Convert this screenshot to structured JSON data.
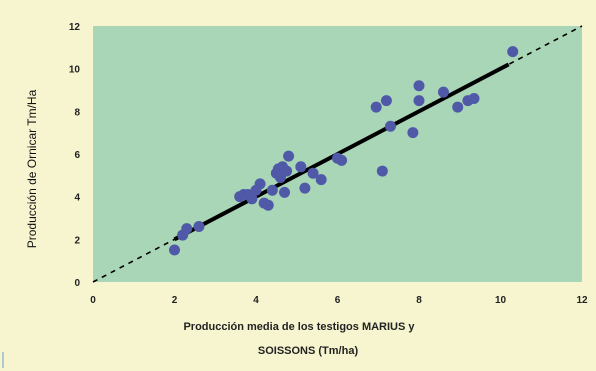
{
  "colors": {
    "background": "#f6f5cf",
    "plot_area": "#a9d6b6",
    "point": "#4f59a8",
    "fit_line": "#000000",
    "diagonal": "#000000",
    "edge_mark": "#6a9bd0"
  },
  "chart_data": {
    "type": "scatter",
    "title": "",
    "xlabel": [
      "Producción media de los testigos MARIUS y",
      "SOISSONS (Tm/ha)"
    ],
    "ylabel": "Producción de Ornicar Tm/Ha",
    "xlim": [
      0,
      12
    ],
    "ylim": [
      0,
      12
    ],
    "xticks": [
      "0",
      "2",
      "4",
      "6",
      "8",
      "10",
      "12"
    ],
    "yticks": [
      "0",
      "2",
      "4",
      "6",
      "8",
      "10",
      "12"
    ],
    "grid": false,
    "legend": "none",
    "points": [
      {
        "x": 2.0,
        "y": 1.5
      },
      {
        "x": 2.2,
        "y": 2.2
      },
      {
        "x": 2.3,
        "y": 2.5
      },
      {
        "x": 2.6,
        "y": 2.6
      },
      {
        "x": 3.6,
        "y": 4.0
      },
      {
        "x": 3.7,
        "y": 4.1
      },
      {
        "x": 3.8,
        "y": 4.1
      },
      {
        "x": 3.9,
        "y": 3.9
      },
      {
        "x": 4.0,
        "y": 4.3
      },
      {
        "x": 4.1,
        "y": 4.6
      },
      {
        "x": 4.2,
        "y": 3.7
      },
      {
        "x": 4.3,
        "y": 3.6
      },
      {
        "x": 4.4,
        "y": 4.3
      },
      {
        "x": 4.5,
        "y": 5.1
      },
      {
        "x": 4.55,
        "y": 5.3
      },
      {
        "x": 4.6,
        "y": 4.9
      },
      {
        "x": 4.65,
        "y": 5.4
      },
      {
        "x": 4.7,
        "y": 4.2
      },
      {
        "x": 4.75,
        "y": 5.2
      },
      {
        "x": 4.8,
        "y": 5.9
      },
      {
        "x": 5.1,
        "y": 5.4
      },
      {
        "x": 5.2,
        "y": 4.4
      },
      {
        "x": 5.4,
        "y": 5.1
      },
      {
        "x": 5.6,
        "y": 4.8
      },
      {
        "x": 6.0,
        "y": 5.8
      },
      {
        "x": 6.1,
        "y": 5.7
      },
      {
        "x": 6.95,
        "y": 8.2
      },
      {
        "x": 7.1,
        "y": 5.2
      },
      {
        "x": 7.2,
        "y": 8.5
      },
      {
        "x": 7.3,
        "y": 7.3
      },
      {
        "x": 7.85,
        "y": 7.0
      },
      {
        "x": 8.0,
        "y": 9.2
      },
      {
        "x": 8.0,
        "y": 8.5
      },
      {
        "x": 8.6,
        "y": 8.9
      },
      {
        "x": 8.95,
        "y": 8.2
      },
      {
        "x": 9.2,
        "y": 8.5
      },
      {
        "x": 9.35,
        "y": 8.6
      },
      {
        "x": 10.3,
        "y": 10.8
      }
    ],
    "fit_line": {
      "x": [
        2.0,
        10.2
      ],
      "y": [
        2.0,
        10.2
      ]
    },
    "diagonal": {
      "x": [
        0,
        12
      ],
      "y": [
        0,
        12
      ],
      "style": "dashed"
    }
  }
}
